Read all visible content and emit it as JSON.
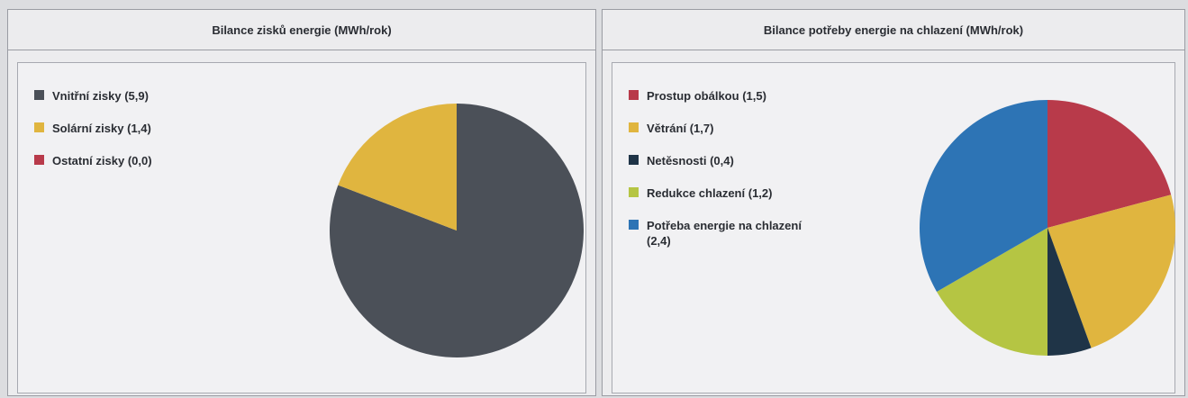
{
  "chart_data": [
    {
      "type": "pie",
      "title": "Bilance zisků energie (MWh/rok)",
      "categories": [
        "Vnitřní zisky",
        "Solární zisky",
        "Ostatní zisky"
      ],
      "values": [
        5.9,
        1.4,
        0.0
      ],
      "value_labels": [
        "(5,9)",
        "(1,4)",
        "(0,0)"
      ],
      "colors": [
        "#4b5058",
        "#e0b53f",
        "#b83a4a"
      ]
    },
    {
      "type": "pie",
      "title": "Bilance potřeby energie na chlazení (MWh/rok)",
      "categories": [
        "Prostup obálkou",
        "Větrání",
        "Netěsnosti",
        "Redukce chlazení",
        "Potřeba energie na chlazení"
      ],
      "values": [
        1.5,
        1.7,
        0.4,
        1.2,
        2.4
      ],
      "value_labels": [
        "(1,5)",
        "(1,7)",
        "(0,4)",
        "(1,2)",
        "(2,4)"
      ],
      "colors": [
        "#b83a4a",
        "#e0b53f",
        "#1f3447",
        "#b5c543",
        "#2d74b5"
      ]
    }
  ]
}
